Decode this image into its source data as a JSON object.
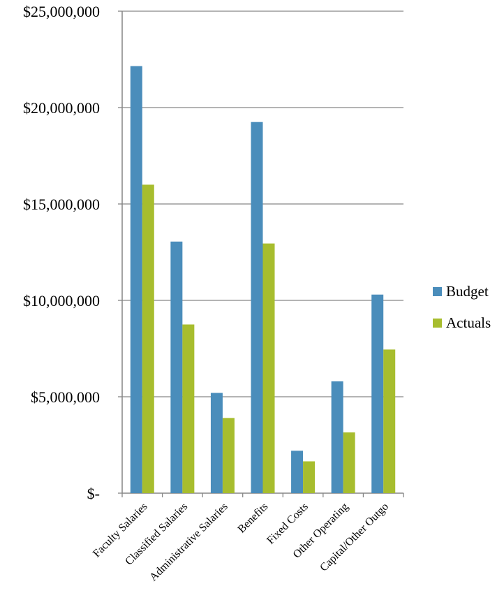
{
  "chart_data": {
    "type": "bar",
    "title": "",
    "xlabel": "",
    "ylabel": "",
    "categories": [
      "Faculty Salaries",
      "Classified Salaries",
      "Administrative Salaries",
      "Benefits",
      "Fixed Costs",
      "Other Operating",
      "Capital/Other Outgo"
    ],
    "series": [
      {
        "name": "Budget",
        "color": "#4A8DBB",
        "values": [
          22150000,
          13050000,
          5200000,
          19250000,
          2200000,
          5800000,
          10300000
        ]
      },
      {
        "name": "Actuals",
        "color": "#A7BD2E",
        "values": [
          16000000,
          8750000,
          3900000,
          12950000,
          1650000,
          3150000,
          7450000
        ]
      }
    ],
    "ylim": [
      0,
      25000000
    ],
    "y_ticks": [
      {
        "value": 0,
        "label": "$-"
      },
      {
        "value": 5000000,
        "label": "$5,000,000"
      },
      {
        "value": 10000000,
        "label": "$10,000,000"
      },
      {
        "value": 15000000,
        "label": "$15,000,000"
      },
      {
        "value": 20000000,
        "label": "$20,000,000"
      },
      {
        "value": 25000000,
        "label": "$25,000,000"
      }
    ],
    "grid": true,
    "gridline_color": "#868686",
    "legend_position": "right"
  }
}
